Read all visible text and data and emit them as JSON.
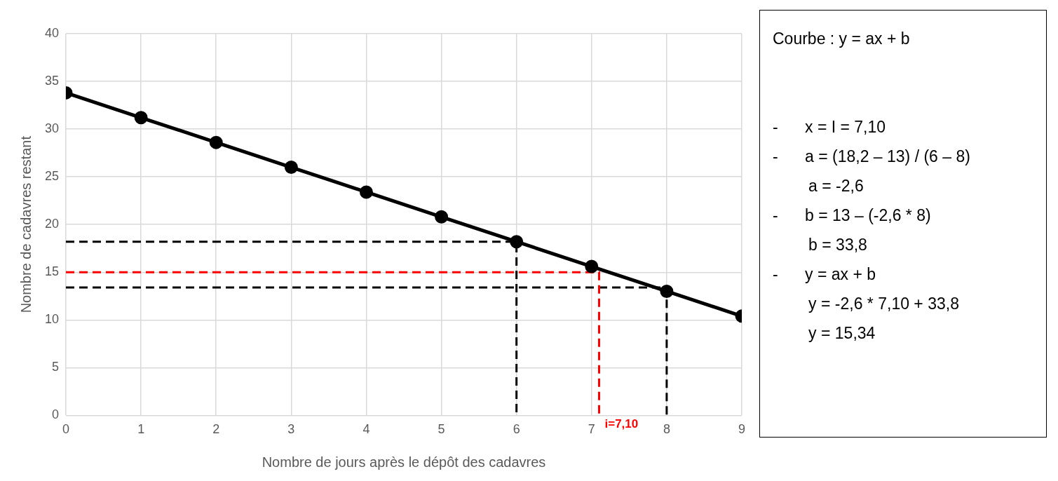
{
  "chart_data": {
    "type": "line",
    "xlabel": "Nombre de jours après le dépôt des cadavres",
    "ylabel": "Nombre de cadavres restant",
    "x": [
      0,
      1,
      2,
      3,
      4,
      5,
      6,
      7,
      8,
      9
    ],
    "xlim": [
      0,
      9
    ],
    "xticks": [
      0,
      1,
      2,
      3,
      4,
      5,
      6,
      7,
      8,
      9
    ],
    "ylim": [
      0,
      40
    ],
    "yticks": [
      0,
      5,
      10,
      15,
      20,
      25,
      30,
      35,
      40
    ],
    "grid": true,
    "marker": "circle",
    "line_style": "solid",
    "series": [
      {
        "color": "#000000",
        "values": [
          33.8,
          31.2,
          28.6,
          26,
          23.4,
          20.8,
          18.2,
          15.6,
          13,
          10.4
        ]
      },
      {
        "type": "line",
        "color": "#000000",
        "line_style": "dashed",
        "marker": "none",
        "x": [
          0,
          6,
          6
        ],
        "values": [
          18.2,
          18.2,
          0
        ]
      },
      {
        "type": "line",
        "color": "#ff0000",
        "line_style": "dashed",
        "marker": "none",
        "x": [
          0,
          7.1,
          7.1
        ],
        "values": [
          15,
          15,
          0
        ]
      },
      {
        "type": "line",
        "color": "#000000",
        "line_style": "dashed",
        "marker": "none",
        "x": [
          0,
          8,
          8
        ],
        "values": [
          13.4,
          13.4,
          0
        ]
      }
    ],
    "annotations": [
      {
        "text": "i=7,10",
        "x": 7.1,
        "y": 0
      },
      "Courbe : y = ax + b",
      "-      x = I = 7,10",
      "-      a = (18,2 – 13) / (6 – 8)",
      "        a = -2,6",
      "-      b = 13 – (-2,6 * 8)",
      "        b = 33,8",
      "-      y = ax + b",
      "        y = -2,6 * 7,10 + 33,8",
      "        y = 15,34"
    ]
  }
}
